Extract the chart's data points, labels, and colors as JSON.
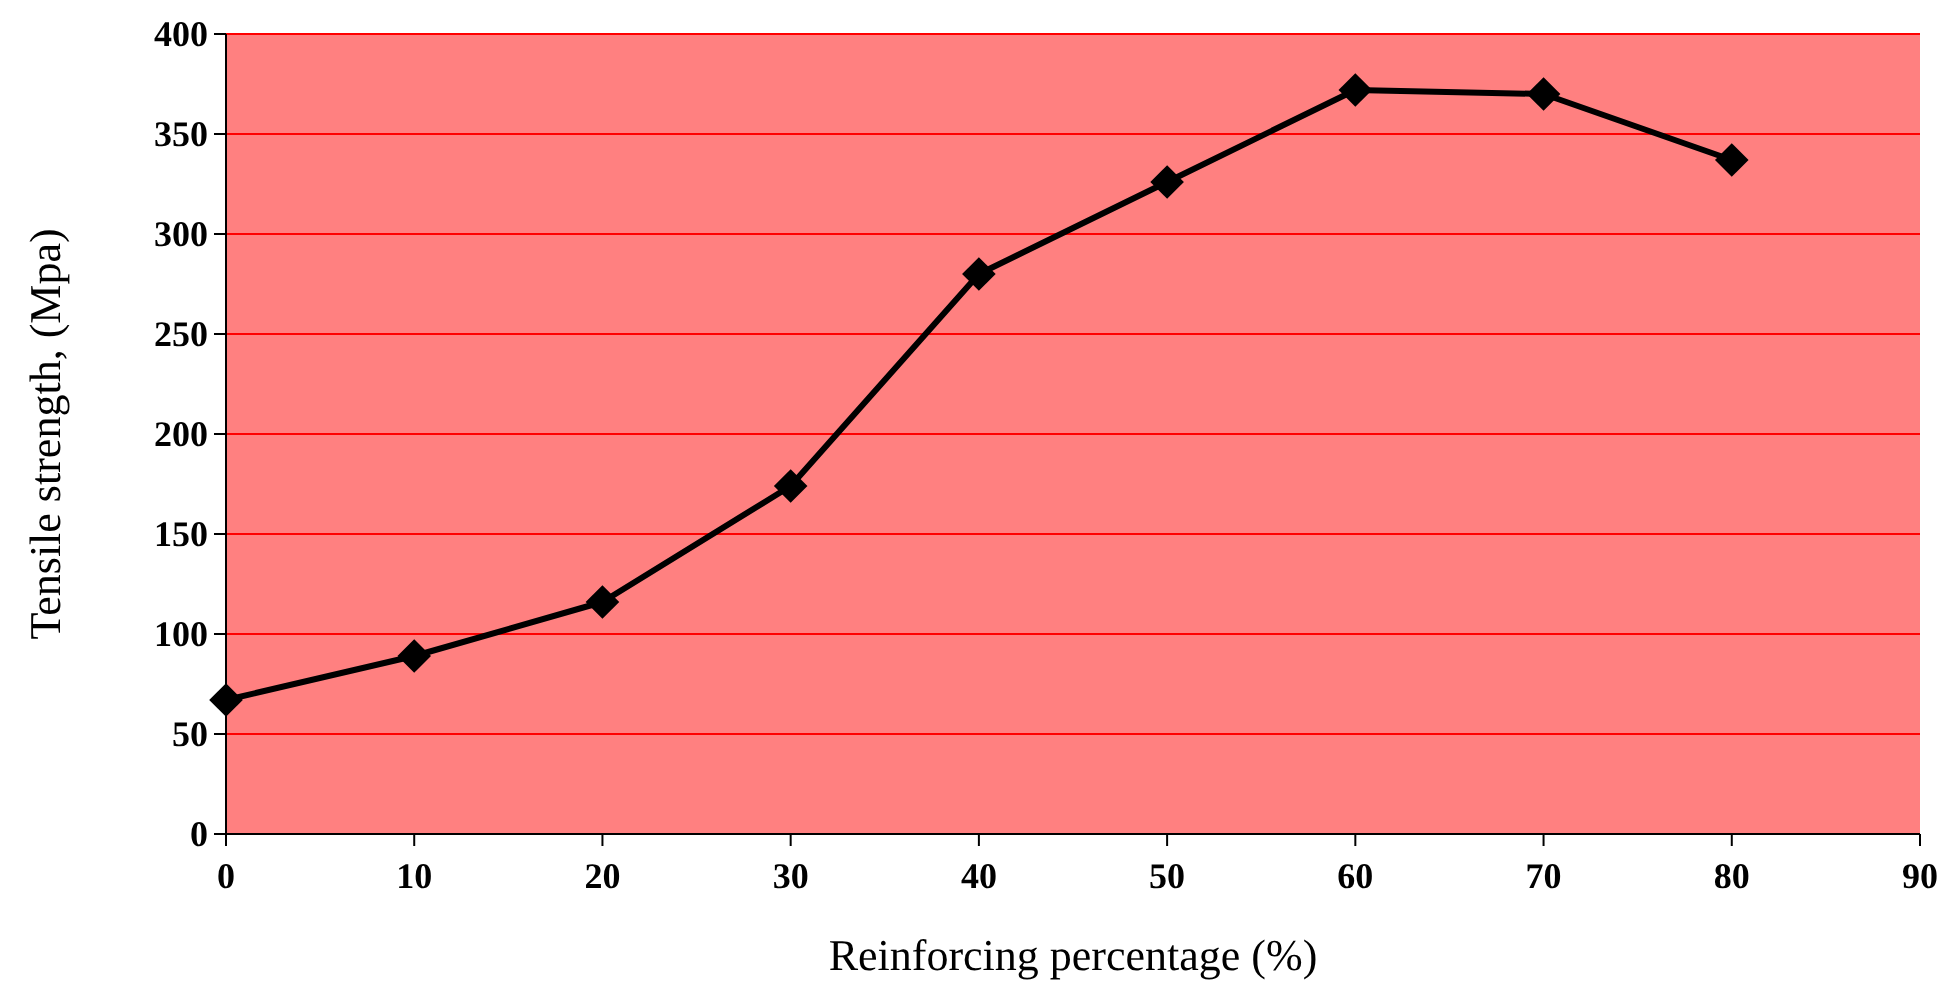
{
  "chart_data": {
    "type": "line",
    "xlabel": "Reinforcing percentage (%)",
    "ylabel": "Tensile strength,  (Mpa)",
    "x": [
      0,
      10,
      20,
      30,
      40,
      50,
      60,
      70,
      80
    ],
    "series": [
      {
        "color": "#000000",
        "values": [
          67,
          89,
          116,
          174,
          280,
          326,
          372,
          370,
          337
        ]
      }
    ],
    "xlim": [
      0,
      90
    ],
    "xticks": [
      0,
      10,
      20,
      30,
      40,
      50,
      60,
      70,
      80,
      90
    ],
    "ylim": [
      0,
      400
    ],
    "yticks": [
      0,
      50,
      100,
      150,
      200,
      250,
      300,
      350,
      400
    ],
    "grid": "y",
    "marker": "diamond",
    "line_style": "solid"
  }
}
